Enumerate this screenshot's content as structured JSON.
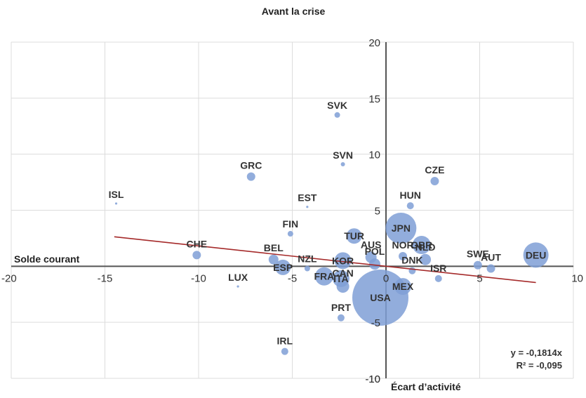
{
  "chart_data": {
    "type": "scatter",
    "subtype": "bubble",
    "title": "Avant la crise",
    "xlabel": "Écart d’activité",
    "ylabel": "Solde courant",
    "xlim": [
      -20,
      10
    ],
    "ylim": [
      -10,
      20
    ],
    "x_ticks": [
      -20,
      -15,
      -10,
      -5,
      0,
      5,
      10
    ],
    "y_ticks": [
      -10,
      -5,
      5,
      10,
      15,
      20
    ],
    "grid": "vertical and horizontal at major ticks",
    "bubble_color": "#7f9fd6",
    "trendline": {
      "equation": "y = -0,1814x",
      "r2": "R² = -0,095",
      "color": "#a52a2a",
      "x_range": [
        -14.5,
        8
      ]
    },
    "points": [
      {
        "label": "SVK",
        "x": -2.6,
        "y": 13.5,
        "size": 4
      },
      {
        "label": "SVN",
        "x": -2.3,
        "y": 9.1,
        "size": 3
      },
      {
        "label": "GRC",
        "x": -7.2,
        "y": 8.0,
        "size": 6
      },
      {
        "label": "ISL",
        "x": -14.4,
        "y": 5.6,
        "size": 1
      },
      {
        "label": "CZE",
        "x": 2.6,
        "y": 7.6,
        "size": 6
      },
      {
        "label": "HUN",
        "x": 1.3,
        "y": 5.4,
        "size": 5
      },
      {
        "label": "EST",
        "x": -4.2,
        "y": 5.3,
        "size": 1
      },
      {
        "label": "FIN",
        "x": -5.1,
        "y": 2.9,
        "size": 4
      },
      {
        "label": "TUR",
        "x": -1.7,
        "y": 2.7,
        "size": 11
      },
      {
        "label": "JPN",
        "x": 0.8,
        "y": 3.4,
        "size": 22
      },
      {
        "label": "GBR",
        "x": 1.9,
        "y": 1.9,
        "size": 13
      },
      {
        "label": "NLD",
        "x": 2.1,
        "y": 0.6,
        "size": 8
      },
      {
        "label": "NOR",
        "x": 0.9,
        "y": 0.9,
        "size": 6
      },
      {
        "label": "AUS",
        "x": -0.8,
        "y": 0.8,
        "size": 8
      },
      {
        "label": "KOR",
        "x": -2.3,
        "y": 0.5,
        "size": 12
      },
      {
        "label": "POL",
        "x": -0.6,
        "y": 0.2,
        "size": 8
      },
      {
        "label": "CHE",
        "x": -10.1,
        "y": 1.0,
        "size": 6
      },
      {
        "label": "BEL",
        "x": -6.0,
        "y": 0.6,
        "size": 7
      },
      {
        "label": "NZL",
        "x": -4.2,
        "y": -0.2,
        "size": 4
      },
      {
        "label": "ESP",
        "x": -5.5,
        "y": -0.1,
        "size": 11
      },
      {
        "label": "LUX",
        "x": -7.9,
        "y": -1.8,
        "size": 1
      },
      {
        "label": "FRA",
        "x": -3.3,
        "y": -0.9,
        "size": 13
      },
      {
        "label": "ITA",
        "x": -2.4,
        "y": -1.1,
        "size": 12
      },
      {
        "label": "CAN",
        "x": -2.3,
        "y": -1.8,
        "size": 9
      },
      {
        "label": "USA",
        "x": -0.3,
        "y": -2.8,
        "size": 40
      },
      {
        "label": "DNK",
        "x": 1.4,
        "y": -0.4,
        "size": 5
      },
      {
        "label": "MEX",
        "x": 0.9,
        "y": -1.8,
        "size": 12
      },
      {
        "label": "ISR",
        "x": 2.8,
        "y": -1.1,
        "size": 5
      },
      {
        "label": "SWE",
        "x": 4.9,
        "y": 0.1,
        "size": 6
      },
      {
        "label": "AUT",
        "x": 5.6,
        "y": -0.2,
        "size": 6
      },
      {
        "label": "DEU",
        "x": 8.0,
        "y": 1.0,
        "size": 18
      },
      {
        "label": "PRT",
        "x": -2.4,
        "y": -4.6,
        "size": 5
      },
      {
        "label": "IRL",
        "x": -5.4,
        "y": -7.6,
        "size": 5
      }
    ]
  }
}
